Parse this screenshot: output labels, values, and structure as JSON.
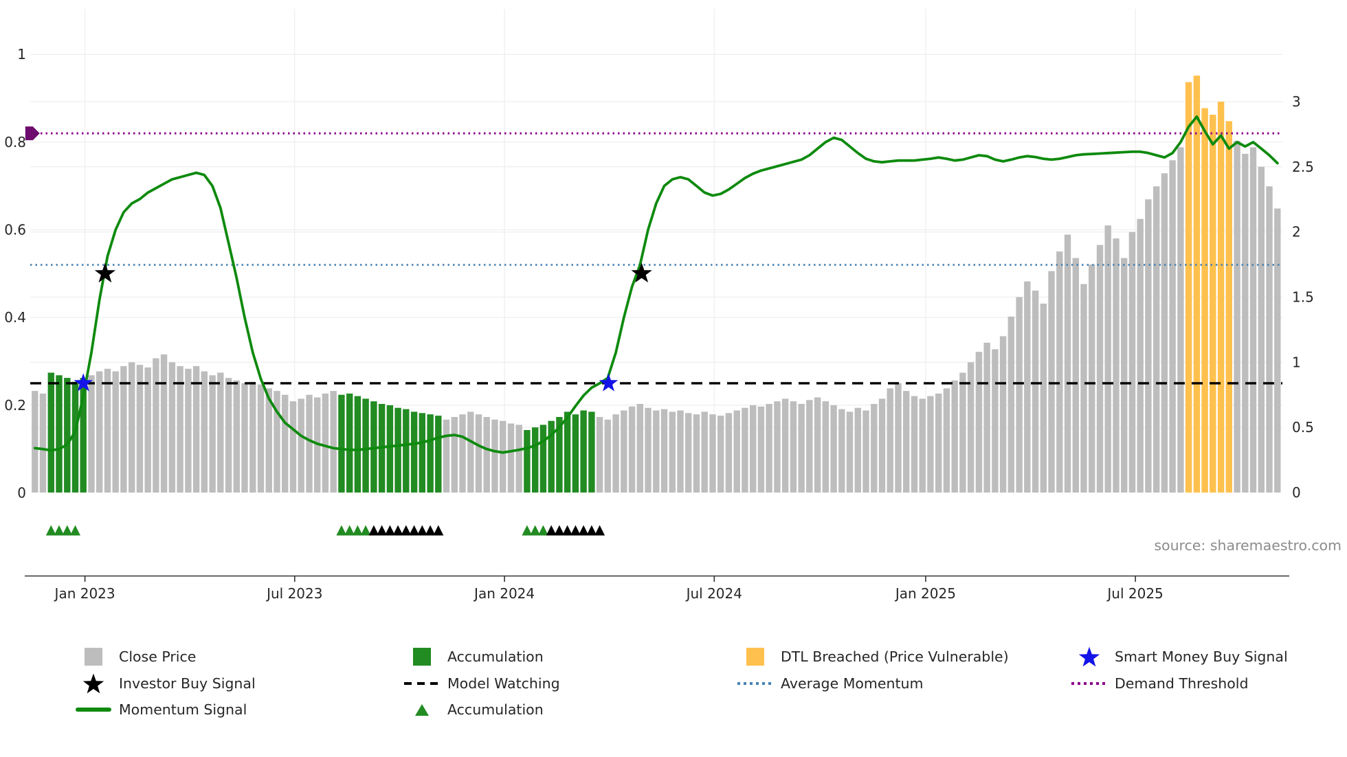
{
  "source": "source: sharemaestro.com",
  "colors": {
    "close_price": "#BDBDBD",
    "accumulation": "#228B22",
    "dtl_breached": "#FFC04D",
    "momentum": "#0E8A0E",
    "average_momentum": "#4682B4",
    "demand_threshold": "#8B008B",
    "demand_marker": "#6E0B6E",
    "model_watching": "#000000",
    "smart_money_star": "#1414E8",
    "investor_star": "#000000",
    "grid": "#EFEFEF",
    "axis_text": "#262626",
    "source_text": "#8C8C8C"
  },
  "legend": {
    "items": [
      {
        "row": 0,
        "col": 0,
        "swatch": "square",
        "color_key": "close_price",
        "label": "Close Price",
        "name": "close-price"
      },
      {
        "row": 0,
        "col": 1,
        "swatch": "square",
        "color_key": "accumulation",
        "label": "Accumulation",
        "name": "accumulation"
      },
      {
        "row": 0,
        "col": 2,
        "swatch": "square",
        "color_key": "dtl_breached",
        "label": "DTL Breached (Price Vulnerable)",
        "name": "dtl-breached"
      },
      {
        "row": 0,
        "col": 3,
        "swatch": "star",
        "color_key": "smart_money_star",
        "label": "Smart Money Buy Signal",
        "name": "smart-money-buy-signal"
      },
      {
        "row": 1,
        "col": 0,
        "swatch": "star",
        "color_key": "investor_star",
        "label": "Investor Buy Signal",
        "name": "investor-buy-signal"
      },
      {
        "row": 1,
        "col": 1,
        "swatch": "dashed-line",
        "color_key": "model_watching",
        "label": "Model Watching",
        "name": "model-watching"
      },
      {
        "row": 1,
        "col": 2,
        "swatch": "dotted-line",
        "color_key": "average_momentum",
        "label": "Average Momentum",
        "name": "average-momentum"
      },
      {
        "row": 1,
        "col": 3,
        "swatch": "dotted-line",
        "color_key": "demand_threshold",
        "label": "Demand Threshold",
        "name": "demand-threshold"
      },
      {
        "row": 2,
        "col": 0,
        "swatch": "line",
        "color_key": "momentum",
        "label": "Momentum Signal",
        "name": "momentum-signal"
      },
      {
        "row": 2,
        "col": 1,
        "swatch": "triangle",
        "color_key": "accumulation",
        "label": "Accumulation",
        "name": "accumulation-marker"
      }
    ]
  },
  "chart_data": {
    "type": "bar+line",
    "x_unit": "week",
    "x_ticks": [
      {
        "label": "Jan 2023",
        "week": 6.2
      },
      {
        "label": "Jul 2023",
        "week": 32.2
      },
      {
        "label": "Jan 2024",
        "week": 58.2
      },
      {
        "label": "Jul 2024",
        "week": 84.2
      },
      {
        "label": "Jan 2025",
        "week": 110.4
      },
      {
        "label": "Jul 2025",
        "week": 136.4
      }
    ],
    "left_axis": {
      "range": [
        0,
        1.1
      ],
      "ticks": [
        {
          "label": "0",
          "value": 0
        },
        {
          "label": "0.2",
          "value": 0.2
        },
        {
          "label": "0.4",
          "value": 0.4
        },
        {
          "label": "0.6",
          "value": 0.6
        },
        {
          "label": "0.8",
          "value": 0.8
        },
        {
          "label": "1",
          "value": 1
        }
      ]
    },
    "right_axis": {
      "range": [
        0,
        3.7
      ],
      "ticks": [
        {
          "label": "0",
          "value": 0
        },
        {
          "label": "0.5",
          "value": 0.5
        },
        {
          "label": "1",
          "value": 1
        },
        {
          "label": "1.5",
          "value": 1.5
        },
        {
          "label": "2",
          "value": 2
        },
        {
          "label": "2.5",
          "value": 2.5
        },
        {
          "label": "3",
          "value": 3
        }
      ]
    },
    "bars": {
      "name": "Close Price",
      "axis": "right",
      "values": [
        0.78,
        0.76,
        0.92,
        0.9,
        0.88,
        0.85,
        0.88,
        0.9,
        0.93,
        0.95,
        0.93,
        0.97,
        1.0,
        0.98,
        0.96,
        1.03,
        1.06,
        1.0,
        0.97,
        0.95,
        0.97,
        0.93,
        0.9,
        0.92,
        0.88,
        0.86,
        0.84,
        0.85,
        0.83,
        0.8,
        0.78,
        0.75,
        0.7,
        0.72,
        0.75,
        0.73,
        0.76,
        0.78,
        0.75,
        0.76,
        0.74,
        0.72,
        0.7,
        0.68,
        0.67,
        0.65,
        0.64,
        0.62,
        0.61,
        0.6,
        0.59,
        0.56,
        0.58,
        0.6,
        0.62,
        0.6,
        0.58,
        0.56,
        0.55,
        0.53,
        0.52,
        0.48,
        0.5,
        0.52,
        0.55,
        0.58,
        0.62,
        0.6,
        0.63,
        0.62,
        0.58,
        0.56,
        0.6,
        0.63,
        0.66,
        0.68,
        0.65,
        0.63,
        0.64,
        0.62,
        0.63,
        0.61,
        0.6,
        0.62,
        0.6,
        0.59,
        0.61,
        0.63,
        0.65,
        0.67,
        0.66,
        0.68,
        0.7,
        0.72,
        0.7,
        0.68,
        0.71,
        0.73,
        0.7,
        0.67,
        0.64,
        0.62,
        0.65,
        0.63,
        0.68,
        0.72,
        0.8,
        0.84,
        0.78,
        0.74,
        0.72,
        0.74,
        0.76,
        0.8,
        0.86,
        0.92,
        1.0,
        1.08,
        1.15,
        1.1,
        1.2,
        1.35,
        1.5,
        1.62,
        1.55,
        1.45,
        1.7,
        1.85,
        1.98,
        1.8,
        1.6,
        1.75,
        1.9,
        2.05,
        1.95,
        1.8,
        2.0,
        2.1,
        2.25,
        2.35,
        2.45,
        2.55,
        2.65,
        3.15,
        3.2,
        2.95,
        2.9,
        3.0,
        2.85,
        2.7,
        2.6,
        2.65,
        2.5,
        2.35,
        2.18
      ],
      "state_runs": [
        [
          "c",
          2
        ],
        [
          "a",
          5
        ],
        [
          "c",
          31
        ],
        [
          "a",
          13
        ],
        [
          "c",
          10
        ],
        [
          "a",
          9
        ],
        [
          "c",
          73
        ],
        [
          "d",
          6
        ],
        [
          "c",
          6
        ]
      ],
      "state_legend": {
        "c": "close-price",
        "a": "accumulation",
        "d": "dtl-breached"
      }
    },
    "momentum": {
      "name": "Momentum Signal",
      "axis": "left",
      "values": [
        0.102,
        0.1,
        0.097,
        0.1,
        0.11,
        0.14,
        0.22,
        0.32,
        0.44,
        0.54,
        0.6,
        0.64,
        0.66,
        0.67,
        0.685,
        0.695,
        0.705,
        0.715,
        0.72,
        0.725,
        0.73,
        0.725,
        0.7,
        0.65,
        0.57,
        0.49,
        0.4,
        0.32,
        0.26,
        0.215,
        0.185,
        0.16,
        0.145,
        0.13,
        0.12,
        0.112,
        0.107,
        0.102,
        0.1,
        0.098,
        0.098,
        0.1,
        0.102,
        0.104,
        0.106,
        0.108,
        0.11,
        0.112,
        0.115,
        0.12,
        0.126,
        0.13,
        0.132,
        0.128,
        0.118,
        0.108,
        0.1,
        0.095,
        0.092,
        0.095,
        0.098,
        0.102,
        0.108,
        0.118,
        0.132,
        0.15,
        0.172,
        0.198,
        0.222,
        0.24,
        0.25,
        0.262,
        0.32,
        0.4,
        0.47,
        0.52,
        0.6,
        0.66,
        0.7,
        0.715,
        0.72,
        0.715,
        0.7,
        0.685,
        0.678,
        0.682,
        0.692,
        0.705,
        0.718,
        0.728,
        0.735,
        0.74,
        0.745,
        0.75,
        0.755,
        0.76,
        0.77,
        0.785,
        0.8,
        0.81,
        0.805,
        0.79,
        0.775,
        0.762,
        0.756,
        0.754,
        0.756,
        0.758,
        0.758,
        0.758,
        0.76,
        0.762,
        0.765,
        0.762,
        0.758,
        0.76,
        0.765,
        0.77,
        0.768,
        0.76,
        0.756,
        0.76,
        0.765,
        0.768,
        0.766,
        0.762,
        0.76,
        0.762,
        0.766,
        0.77,
        0.772,
        0.773,
        0.774,
        0.775,
        0.776,
        0.777,
        0.778,
        0.778,
        0.775,
        0.77,
        0.765,
        0.775,
        0.8,
        0.835,
        0.858,
        0.825,
        0.795,
        0.815,
        0.785,
        0.8,
        0.79,
        0.8,
        0.785,
        0.77,
        0.752
      ]
    },
    "thresholds": {
      "demand_threshold": 0.82,
      "average_momentum": 0.52,
      "model_watching": 0.25
    },
    "signals": {
      "investor_buy": [
        {
          "week": 8.7,
          "value": 0.5
        },
        {
          "week": 75.2,
          "value": 0.5
        }
      ],
      "smart_money_buy": [
        {
          "week": 6.0,
          "value": 0.25
        },
        {
          "week": 71.1,
          "value": 0.25
        }
      ],
      "demand_marker": {
        "week": -0.6,
        "value": 0.82
      }
    },
    "markers": {
      "accumulation_weeks": [
        2,
        3,
        4,
        5,
        38,
        39,
        40,
        41,
        61,
        62,
        63
      ],
      "watching_weeks": [
        42,
        43,
        44,
        45,
        46,
        47,
        48,
        49,
        50,
        64,
        65,
        66,
        67,
        68,
        69,
        70
      ]
    }
  }
}
